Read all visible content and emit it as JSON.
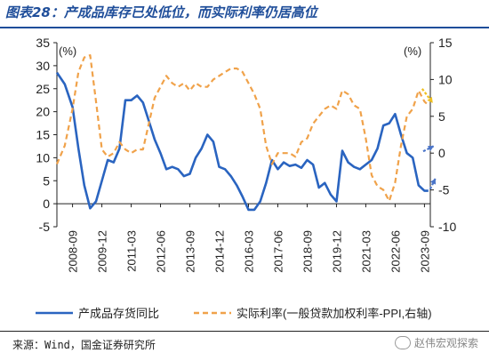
{
  "title": "图表28：产成品库存已处低位，而实际利率仍居高位",
  "source": "来源：Wind，国金证券研究所",
  "watermark": "赵伟宏观探索",
  "colors": {
    "title": "#1f4e9a",
    "inventory": "#2a64c0",
    "real_rate": "#f0a24a",
    "arrow_blue": "#4a74c8",
    "arrow_yellow": "#f0c020"
  },
  "chart_data": {
    "type": "line",
    "title": "",
    "x_tick_labels": [
      "2008-09",
      "2009-12",
      "2011-03",
      "2012-06",
      "2013-09",
      "2014-12",
      "2016-03",
      "2017-06",
      "2018-09",
      "2019-12",
      "2021-03",
      "2022-06",
      "2023-09"
    ],
    "x_range": [
      "2008-01",
      "2023-12"
    ],
    "left_axis": {
      "label": "(%)",
      "ylim": [
        -5,
        35
      ],
      "ticks": [
        -5,
        0,
        5,
        10,
        15,
        20,
        25,
        30,
        35
      ]
    },
    "right_axis": {
      "label": "(%)",
      "ylim": [
        -10,
        15
      ],
      "ticks": [
        -10,
        -5,
        0,
        5,
        10,
        15
      ]
    },
    "grid": false,
    "legend_position": "bottom",
    "series": [
      {
        "name": "产成品存货同比",
        "axis": "left",
        "style": "solid",
        "points": [
          [
            "2008-01",
            28.5
          ],
          [
            "2008-05",
            26
          ],
          [
            "2008-09",
            21
          ],
          [
            "2008-12",
            12
          ],
          [
            "2009-03",
            4
          ],
          [
            "2009-06",
            -1
          ],
          [
            "2009-09",
            0.5
          ],
          [
            "2009-12",
            5
          ],
          [
            "2010-03",
            9.5
          ],
          [
            "2010-06",
            9
          ],
          [
            "2010-09",
            12
          ],
          [
            "2010-12",
            22.5
          ],
          [
            "2011-03",
            22.5
          ],
          [
            "2011-06",
            23.5
          ],
          [
            "2011-09",
            22
          ],
          [
            "2011-12",
            18
          ],
          [
            "2012-03",
            14
          ],
          [
            "2012-06",
            11
          ],
          [
            "2012-09",
            7.5
          ],
          [
            "2012-12",
            8
          ],
          [
            "2013-03",
            7.5
          ],
          [
            "2013-06",
            6
          ],
          [
            "2013-09",
            6.5
          ],
          [
            "2013-12",
            10
          ],
          [
            "2014-03",
            12
          ],
          [
            "2014-06",
            15
          ],
          [
            "2014-09",
            13.5
          ],
          [
            "2014-12",
            8
          ],
          [
            "2015-03",
            7.5
          ],
          [
            "2015-06",
            6
          ],
          [
            "2015-09",
            4
          ],
          [
            "2015-12",
            1.5
          ],
          [
            "2016-03",
            -1.3
          ],
          [
            "2016-06",
            -1.3
          ],
          [
            "2016-09",
            0.5
          ],
          [
            "2016-12",
            4.5
          ],
          [
            "2017-03",
            9.5
          ],
          [
            "2017-06",
            7.5
          ],
          [
            "2017-09",
            9
          ],
          [
            "2017-12",
            8.2
          ],
          [
            "2018-03",
            8.5
          ],
          [
            "2018-06",
            7.8
          ],
          [
            "2018-09",
            9.5
          ],
          [
            "2018-12",
            8.5
          ],
          [
            "2019-03",
            3.5
          ],
          [
            "2019-06",
            4.5
          ],
          [
            "2019-09",
            2
          ],
          [
            "2019-12",
            0.5
          ],
          [
            "2020-03",
            11.5
          ],
          [
            "2020-06",
            9
          ],
          [
            "2020-09",
            8
          ],
          [
            "2020-12",
            7.5
          ],
          [
            "2021-03",
            8.5
          ],
          [
            "2021-06",
            9.5
          ],
          [
            "2021-09",
            12
          ],
          [
            "2021-12",
            17
          ],
          [
            "2022-03",
            17.5
          ],
          [
            "2022-06",
            19.5
          ],
          [
            "2022-09",
            15
          ],
          [
            "2022-12",
            11
          ],
          [
            "2023-03",
            10
          ],
          [
            "2023-06",
            4
          ],
          [
            "2023-09",
            2.8
          ],
          [
            "2023-11",
            2.8
          ]
        ]
      },
      {
        "name": "实际利率(一般贷款加权利率-PPI,右轴)",
        "axis": "right",
        "style": "dashed",
        "points": [
          [
            "2008-01",
            -1.5
          ],
          [
            "2008-05",
            1
          ],
          [
            "2008-09",
            6
          ],
          [
            "2008-12",
            11
          ],
          [
            "2009-03",
            13
          ],
          [
            "2009-06",
            13.3
          ],
          [
            "2009-09",
            7
          ],
          [
            "2009-12",
            0.5
          ],
          [
            "2010-03",
            -0.5
          ],
          [
            "2010-06",
            0
          ],
          [
            "2010-09",
            1.5
          ],
          [
            "2010-12",
            0.5
          ],
          [
            "2011-03",
            0
          ],
          [
            "2011-06",
            0.5
          ],
          [
            "2011-09",
            0.5
          ],
          [
            "2011-12",
            4
          ],
          [
            "2012-03",
            7.5
          ],
          [
            "2012-06",
            9
          ],
          [
            "2012-09",
            10.5
          ],
          [
            "2012-12",
            9.5
          ],
          [
            "2013-03",
            9
          ],
          [
            "2013-06",
            9.5
          ],
          [
            "2013-09",
            8.5
          ],
          [
            "2013-12",
            9.5
          ],
          [
            "2014-03",
            9
          ],
          [
            "2014-06",
            9
          ],
          [
            "2014-09",
            10
          ],
          [
            "2014-12",
            10.5
          ],
          [
            "2015-03",
            11
          ],
          [
            "2015-06",
            11.5
          ],
          [
            "2015-09",
            11.5
          ],
          [
            "2015-12",
            11
          ],
          [
            "2016-03",
            9.5
          ],
          [
            "2016-06",
            8
          ],
          [
            "2016-09",
            6
          ],
          [
            "2016-12",
            1
          ],
          [
            "2017-03",
            -1.5
          ],
          [
            "2017-06",
            0
          ],
          [
            "2017-09",
            0
          ],
          [
            "2017-12",
            0
          ],
          [
            "2018-03",
            -0.5
          ],
          [
            "2018-06",
            1.5
          ],
          [
            "2018-09",
            2
          ],
          [
            "2018-12",
            4
          ],
          [
            "2019-03",
            5
          ],
          [
            "2019-06",
            6
          ],
          [
            "2019-09",
            6.5
          ],
          [
            "2019-12",
            6
          ],
          [
            "2020-03",
            8.5
          ],
          [
            "2020-06",
            8
          ],
          [
            "2020-09",
            6.5
          ],
          [
            "2020-12",
            6
          ],
          [
            "2021-03",
            2
          ],
          [
            "2021-06",
            -3
          ],
          [
            "2021-09",
            -4.5
          ],
          [
            "2021-12",
            -5
          ],
          [
            "2022-03",
            -6.5
          ],
          [
            "2022-06",
            -4
          ],
          [
            "2022-09",
            1
          ],
          [
            "2022-12",
            5
          ],
          [
            "2023-03",
            6
          ],
          [
            "2023-06",
            8.5
          ],
          [
            "2023-09",
            7
          ],
          [
            "2023-11",
            6.5
          ]
        ]
      }
    ],
    "annotations": [
      {
        "type": "arrow",
        "color": "blue",
        "direction": "up",
        "near": "inventory end"
      },
      {
        "type": "arrow",
        "color": "blue",
        "direction": "right",
        "near": "right axis 0"
      },
      {
        "type": "arrow",
        "color": "yellow",
        "direction": "down",
        "near": "real rate end"
      }
    ]
  }
}
